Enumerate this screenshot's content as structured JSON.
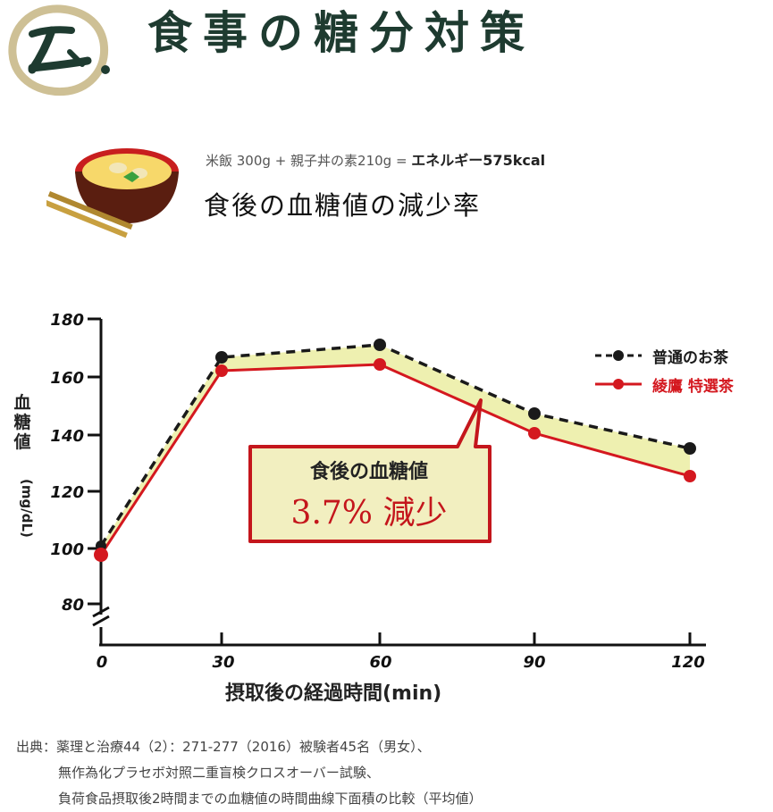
{
  "header": {
    "logo_glyph": "六.",
    "title": "食事の糖分対策"
  },
  "meal": {
    "icon": "oyakodon-bowl-icon",
    "formula_plain": "米飯 300g + 親子丼の素210g = ",
    "formula_bold": "エネルギー575kcal",
    "subtitle": "食後の血糖値の減少率"
  },
  "legend": {
    "items": [
      {
        "label": "普通のお茶",
        "color": "#1a1a1a",
        "style": "dashed"
      },
      {
        "label": "綾鷹 特選茶",
        "color": "#d4181f",
        "style": "solid"
      }
    ]
  },
  "callout": {
    "line1": "食後の血糖値",
    "line2": "3.7% 減少"
  },
  "axes": {
    "ylabel": "血糖値",
    "ylabel_unit": "(mg/dL)",
    "xlabel": "摂取後の経過時間(min)",
    "y_ticks": [
      "180",
      "160",
      "140",
      "120",
      "100",
      "80"
    ],
    "x_ticks": [
      "0",
      "30",
      "60",
      "90",
      "120"
    ]
  },
  "source": {
    "line1": "出典：薬理と治療44（2）：271-277（2016）被験者45名（男女）、",
    "line2": "無作為化プラセボ対照二重盲検クロスオーバー試験、",
    "line3": "負荷食品摂取後2時間までの血糖値の時間曲線下面積の比較（平均値）"
  },
  "colors": {
    "title_green": "#1e3b30",
    "red": "#d4181f",
    "fill_yellow": "#eef0b0",
    "callout_bg": "#f2efc0",
    "logo_gold": "#c9b98a"
  },
  "chart_data": {
    "type": "line",
    "title": "食後の血糖値の減少率",
    "xlabel": "摂取後の経過時間(min)",
    "ylabel": "血糖値 (mg/dL)",
    "x": [
      0,
      30,
      60,
      90,
      120
    ],
    "series": [
      {
        "name": "普通のお茶",
        "values": [
          99,
          167,
          172,
          148,
          135
        ],
        "style": "dashed",
        "color": "#1a1a1a"
      },
      {
        "name": "綾鷹 特選茶",
        "values": [
          98,
          163,
          165,
          140,
          125
        ],
        "style": "solid",
        "color": "#d4181f"
      }
    ],
    "ylim": [
      80,
      180
    ],
    "yticks": [
      80,
      100,
      120,
      140,
      160,
      180
    ],
    "xticks": [
      0,
      30,
      60,
      90,
      120
    ],
    "axis_break": true,
    "grid": false,
    "legend_position": "top-right",
    "annotation": "食後の血糖値 3.7% 減少"
  }
}
